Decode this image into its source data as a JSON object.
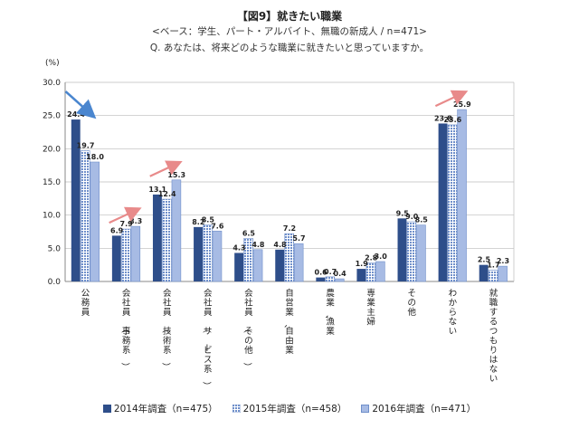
{
  "header": {
    "title": "【図9】就きたい職業",
    "subtitle": "<ベース：学生、パート・アルバイト、無職の新成人 / n=471>",
    "question": "Q. あなたは、将来どのような職業に就きたいと思っていますか。"
  },
  "colors": {
    "s2014": "#2e4e8a",
    "s2015": "#aebfe0",
    "s2016": "#a7bbe4",
    "arrow_up": "#e88a8a",
    "arrow_down": "#4a86cf",
    "grid": "#bbbbbb"
  },
  "chart_data": {
    "type": "bar",
    "ylabel": "(%)",
    "ylim": [
      0,
      30
    ],
    "yticks": [
      "0.0",
      "5.0",
      "10.0",
      "15.0",
      "20.0",
      "25.0",
      "30.0"
    ],
    "grid": true,
    "legend_position": "bottom",
    "categories": [
      "公務員",
      "会社員（事務系）",
      "会社員（技術系）",
      "会社員（サービス系）",
      "会社員（その他）",
      "自営業、自由業",
      "農業、漁業",
      "専業主婦",
      "その他",
      "わからない",
      "就職するつもりはない"
    ],
    "series": [
      {
        "name": "2014年調査（n=475）",
        "values": [
          24.4,
          6.9,
          13.1,
          8.2,
          4.3,
          4.8,
          0.6,
          1.9,
          9.5,
          23.8,
          2.5
        ]
      },
      {
        "name": "2015年調査（n=458）",
        "values": [
          19.7,
          7.9,
          12.4,
          8.5,
          6.5,
          7.2,
          0.7,
          2.8,
          9.0,
          23.6,
          1.7
        ]
      },
      {
        "name": "2016年調査（n=471）",
        "values": [
          18.0,
          8.3,
          15.3,
          7.6,
          4.8,
          5.7,
          0.4,
          3.0,
          8.5,
          25.9,
          2.3
        ]
      }
    ]
  }
}
